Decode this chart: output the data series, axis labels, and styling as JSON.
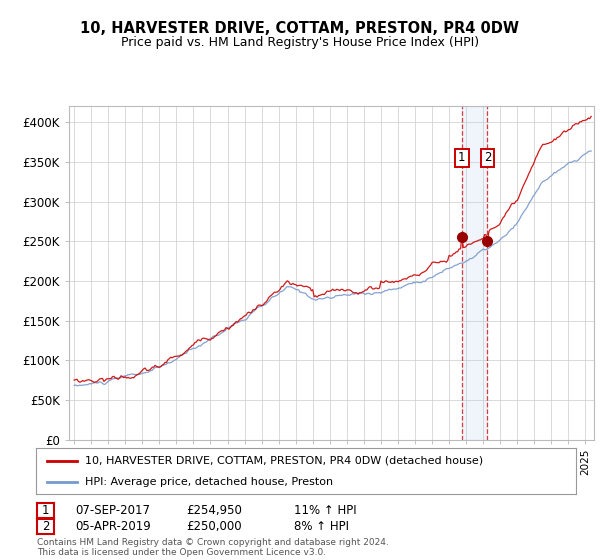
{
  "title": "10, HARVESTER DRIVE, COTTAM, PRESTON, PR4 0DW",
  "subtitle": "Price paid vs. HM Land Registry's House Price Index (HPI)",
  "ylim": [
    0,
    420000
  ],
  "yticks": [
    0,
    50000,
    100000,
    150000,
    200000,
    250000,
    300000,
    350000,
    400000
  ],
  "ytick_labels": [
    "£0",
    "£50K",
    "£100K",
    "£150K",
    "£200K",
    "£250K",
    "£300K",
    "£350K",
    "£400K"
  ],
  "legend1": "10, HARVESTER DRIVE, COTTAM, PRESTON, PR4 0DW (detached house)",
  "legend2": "HPI: Average price, detached house, Preston",
  "sale1_date": "07-SEP-2017",
  "sale1_price": "£254,950",
  "sale1_hpi": "11% ↑ HPI",
  "sale2_date": "05-APR-2019",
  "sale2_price": "£250,000",
  "sale2_hpi": "8% ↑ HPI",
  "footer": "Contains HM Land Registry data © Crown copyright and database right 2024.\nThis data is licensed under the Open Government Licence v3.0.",
  "hpi_color": "#7799cc",
  "price_color": "#cc0000",
  "sale1_x": 2017.75,
  "sale2_x": 2019.25,
  "background_color": "#ffffff",
  "grid_color": "#cccccc"
}
